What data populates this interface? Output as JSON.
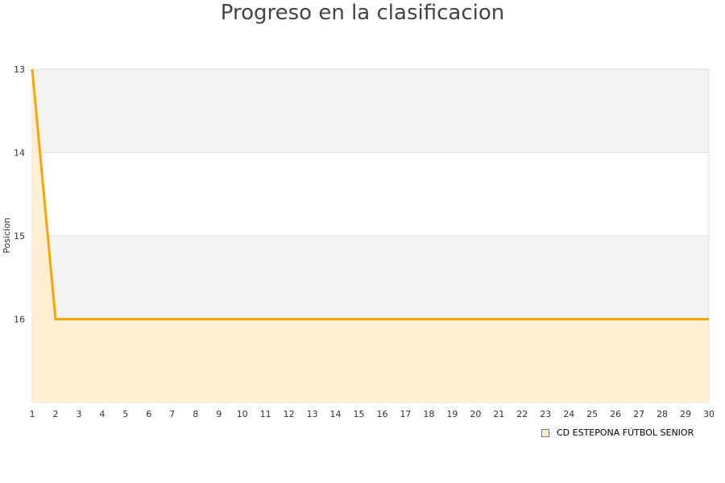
{
  "chart_data": {
    "type": "area",
    "title": "Progreso en la clasificacion",
    "ylabel": "Posicion",
    "xlabel": "",
    "x": [
      1,
      2,
      3,
      4,
      5,
      6,
      7,
      8,
      9,
      10,
      11,
      12,
      13,
      14,
      15,
      16,
      17,
      18,
      19,
      20,
      21,
      22,
      23,
      24,
      25,
      26,
      27,
      28,
      29,
      30
    ],
    "series": [
      {
        "name": "CD ESTEPONA FÚTBOL SENIOR",
        "values": [
          13,
          16,
          16,
          16,
          16,
          16,
          16,
          16,
          16,
          16,
          16,
          16,
          16,
          16,
          16,
          16,
          16,
          16,
          16,
          16,
          16,
          16,
          16,
          16,
          16,
          16,
          16,
          16,
          16,
          16
        ],
        "color": "#ffa500",
        "fill": "#ffeccc"
      }
    ],
    "yticks": [
      13,
      14,
      15,
      16
    ],
    "ylim": [
      13,
      17
    ],
    "y_inverted": true,
    "xlim": [
      1,
      30
    ],
    "grid": "alternating horizontal bands",
    "legend": "bottom-right"
  }
}
